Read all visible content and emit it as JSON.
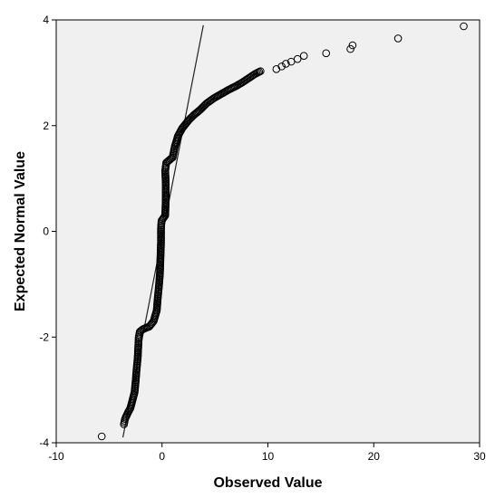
{
  "chart_data": {
    "type": "scatter",
    "title": "",
    "xlabel": "Observed Value",
    "ylabel": "Expected Normal Value",
    "xlim": [
      -10,
      30
    ],
    "ylim": [
      -4,
      4
    ],
    "x_ticks": [
      -10,
      0,
      10,
      20,
      30
    ],
    "y_ticks": [
      -4,
      -2,
      0,
      2,
      4
    ],
    "grid": false,
    "plot_background": "#f0f0f0",
    "marker": "open-circle",
    "reference_line": {
      "x": [
        -3.7,
        3.9
      ],
      "y": [
        -3.9,
        3.9
      ]
    },
    "series": [
      {
        "points": [
          {
            "x": -5.7,
            "y": -3.88
          },
          {
            "x": -3.6,
            "y": -3.65
          },
          {
            "x": -3.5,
            "y": -3.55
          },
          {
            "x": -3.2,
            "y": -3.42
          },
          {
            "x": -3.0,
            "y": -3.35
          },
          {
            "x": -2.8,
            "y": -3.2
          },
          {
            "x": -2.6,
            "y": -3.05
          },
          {
            "x": -2.5,
            "y": -2.85
          },
          {
            "x": -2.4,
            "y": -2.6
          },
          {
            "x": -2.3,
            "y": -2.4
          },
          {
            "x": -2.25,
            "y": -2.2
          },
          {
            "x": -2.2,
            "y": -2.0
          },
          {
            "x": -2.1,
            "y": -1.9
          },
          {
            "x": -1.8,
            "y": -1.85
          },
          {
            "x": -1.2,
            "y": -1.8
          },
          {
            "x": -0.8,
            "y": -1.7
          },
          {
            "x": -0.5,
            "y": -1.5
          },
          {
            "x": -0.4,
            "y": -1.25
          },
          {
            "x": -0.3,
            "y": -1.05
          },
          {
            "x": -0.2,
            "y": -0.8
          },
          {
            "x": -0.15,
            "y": -0.5
          },
          {
            "x": -0.1,
            "y": -0.2
          },
          {
            "x": -0.1,
            "y": 0.05
          },
          {
            "x": -0.05,
            "y": 0.2
          },
          {
            "x": 0.3,
            "y": 0.3
          },
          {
            "x": 0.35,
            "y": 0.6
          },
          {
            "x": 0.35,
            "y": 0.9
          },
          {
            "x": 0.3,
            "y": 1.15
          },
          {
            "x": 0.4,
            "y": 1.3
          },
          {
            "x": 1.0,
            "y": 1.4
          },
          {
            "x": 1.2,
            "y": 1.6
          },
          {
            "x": 1.5,
            "y": 1.8
          },
          {
            "x": 1.9,
            "y": 1.95
          },
          {
            "x": 2.5,
            "y": 2.1
          },
          {
            "x": 3.0,
            "y": 2.2
          },
          {
            "x": 3.6,
            "y": 2.3
          },
          {
            "x": 4.2,
            "y": 2.42
          },
          {
            "x": 4.9,
            "y": 2.52
          },
          {
            "x": 5.6,
            "y": 2.6
          },
          {
            "x": 6.3,
            "y": 2.68
          },
          {
            "x": 7.0,
            "y": 2.75
          },
          {
            "x": 7.6,
            "y": 2.82
          },
          {
            "x": 8.2,
            "y": 2.9
          },
          {
            "x": 8.8,
            "y": 2.98
          },
          {
            "x": 9.3,
            "y": 3.03
          },
          {
            "x": 10.8,
            "y": 3.07
          },
          {
            "x": 11.3,
            "y": 3.12
          },
          {
            "x": 11.7,
            "y": 3.17
          },
          {
            "x": 12.2,
            "y": 3.21
          },
          {
            "x": 12.8,
            "y": 3.26
          },
          {
            "x": 13.4,
            "y": 3.32
          },
          {
            "x": 15.5,
            "y": 3.37
          },
          {
            "x": 17.8,
            "y": 3.45
          },
          {
            "x": 18.0,
            "y": 3.52
          },
          {
            "x": 22.3,
            "y": 3.65
          },
          {
            "x": 28.5,
            "y": 3.88
          }
        ]
      }
    ]
  }
}
